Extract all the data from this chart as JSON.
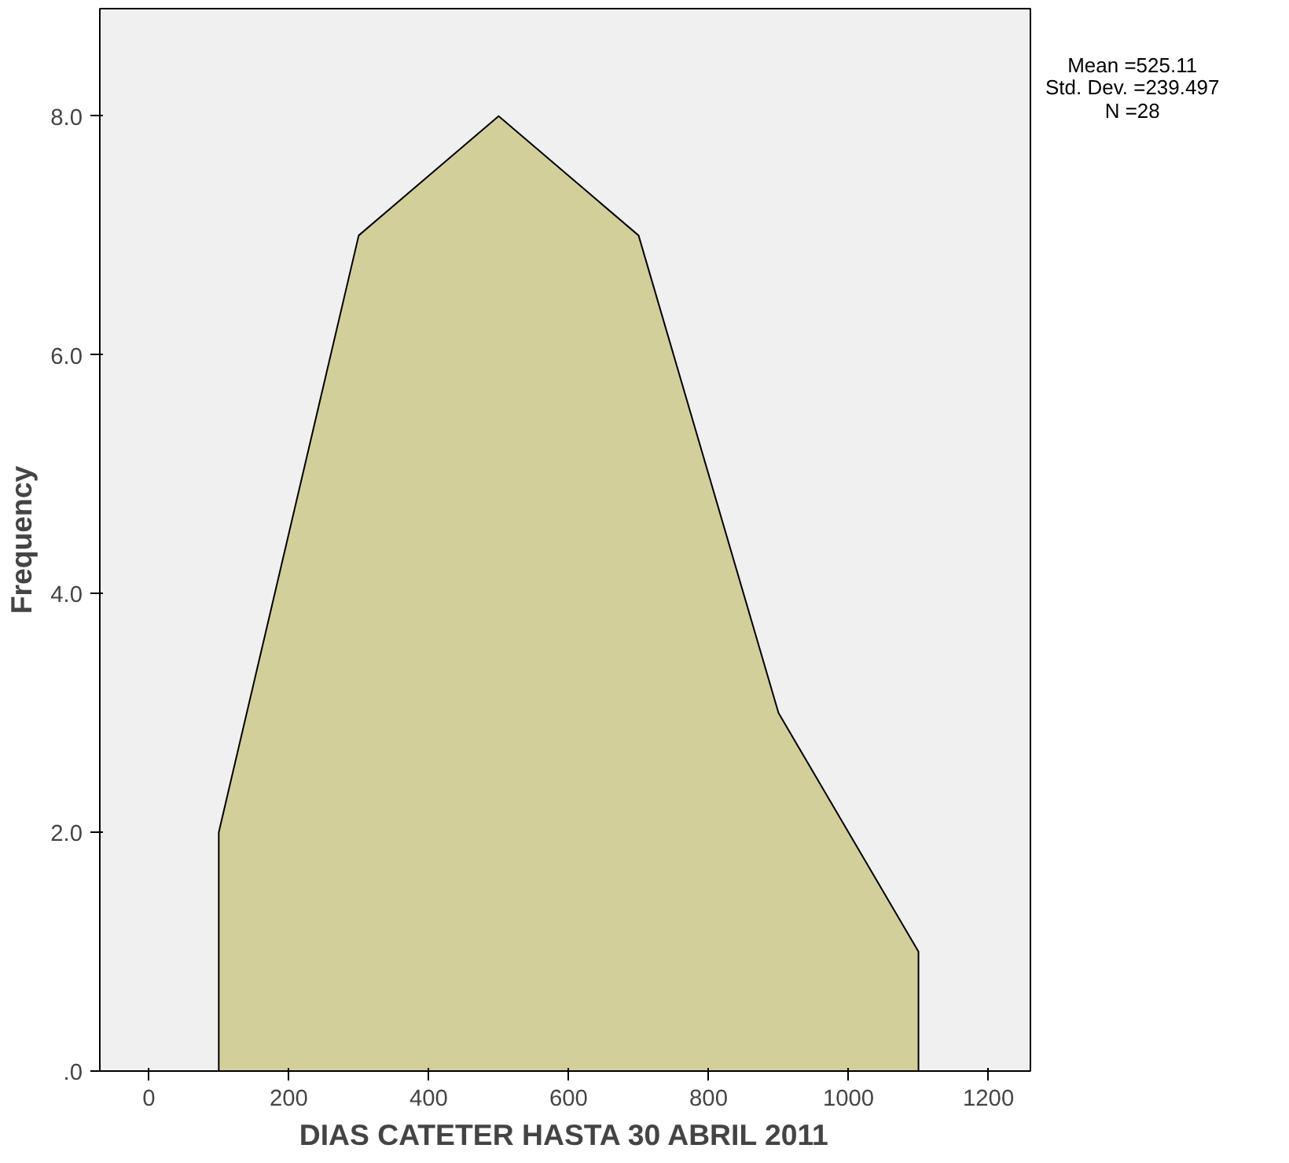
{
  "chart_data": {
    "type": "area",
    "xlabel": "DIAS CATETER HASTA 30 ABRIL 2011",
    "ylabel": "Frequency",
    "x": [
      100,
      300,
      500,
      700,
      900,
      1100
    ],
    "series": [
      {
        "color": "#d3cf9b",
        "values": [
          2,
          7,
          8,
          7,
          3,
          1
        ]
      }
    ],
    "xlim": [
      -70,
      1260
    ],
    "xticks": [
      0,
      200,
      400,
      600,
      800,
      1000,
      1200
    ],
    "ylim": [
      0,
      8.9
    ],
    "yticks": [
      {
        "value": 0,
        "label": ".0"
      },
      {
        "value": 2,
        "label": "2.0"
      },
      {
        "value": 4,
        "label": "4.0"
      },
      {
        "value": 6,
        "label": "6.0"
      },
      {
        "value": 8,
        "label": "8.0"
      }
    ],
    "annotations": [
      "Mean =525.11",
      "Std. Dev. =239.497",
      "N =28"
    ],
    "grid": false
  }
}
